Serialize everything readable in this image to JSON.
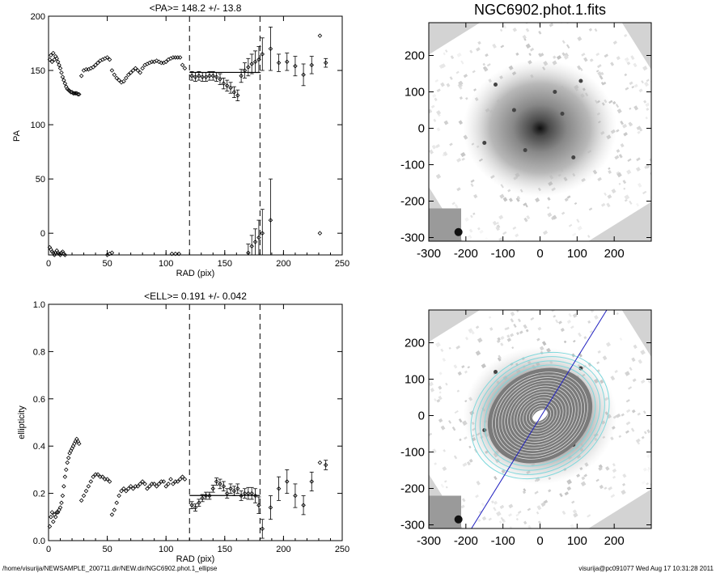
{
  "chart_data": [
    {
      "type": "scatter",
      "id": "pa",
      "title": "<PA>= 148.2 +/-  13.8",
      "xlabel": "RAD (pix)",
      "ylabel": "PA",
      "xlim": [
        0,
        250
      ],
      "ylim": [
        -20,
        200
      ],
      "xticks": [
        0,
        50,
        100,
        150,
        200,
        250
      ],
      "yticks": [
        0,
        50,
        100,
        150,
        200
      ],
      "vlines": [
        120,
        180
      ],
      "mean_line": {
        "x0": 120,
        "x1": 180,
        "y": 148.2
      },
      "inner_x": [
        1,
        2,
        3,
        4,
        5,
        6,
        7,
        8,
        9,
        10,
        11,
        12,
        13,
        14,
        15,
        16,
        17,
        18,
        19,
        20,
        21,
        22,
        23,
        24,
        25,
        26,
        28,
        30,
        32,
        34,
        36,
        38,
        40,
        42,
        44,
        46,
        48,
        50,
        52,
        54,
        56,
        58,
        60,
        62,
        64,
        66,
        68,
        70,
        72,
        74,
        76,
        78,
        80,
        82,
        84,
        86,
        88,
        90,
        92,
        94,
        96,
        98,
        100,
        102,
        104,
        106,
        108,
        110,
        112,
        114,
        116
      ],
      "inner_y": [
        160,
        164,
        158,
        166,
        160,
        163,
        161,
        158,
        155,
        152,
        148,
        144,
        141,
        138,
        135,
        133,
        132,
        131,
        130,
        130,
        129,
        129,
        129,
        129,
        128,
        128,
        145,
        150,
        151,
        151,
        152,
        153,
        155,
        157,
        159,
        160,
        161,
        162,
        160,
        150,
        146,
        143,
        141,
        139,
        140,
        143,
        146,
        148,
        150,
        152,
        150,
        148,
        152,
        155,
        156,
        157,
        158,
        158,
        159,
        158,
        157,
        157,
        158,
        160,
        161,
        162,
        162,
        162,
        162,
        155,
        152
      ],
      "outer_x": [
        122,
        125,
        128,
        131,
        134,
        137,
        140,
        143,
        146,
        149,
        152,
        155,
        158,
        161,
        164,
        167,
        170,
        173,
        176,
        179,
        182,
        189,
        196,
        203,
        210,
        217,
        224,
        231,
        236
      ],
      "outer_y": [
        145,
        144,
        145,
        144,
        144,
        145,
        145,
        144,
        142,
        138,
        136,
        134,
        130,
        127,
        145,
        150,
        153,
        156,
        158,
        160,
        165,
        170,
        157,
        158,
        154,
        146,
        155,
        182,
        157
      ],
      "outer_err": [
        4,
        4,
        4,
        4,
        4,
        4,
        4,
        4,
        5,
        5,
        5,
        5,
        5,
        5,
        6,
        7,
        8,
        9,
        10,
        12,
        15,
        20,
        8,
        8,
        9,
        10,
        8,
        0,
        4
      ],
      "low_x": [
        1,
        2,
        3,
        4,
        5,
        6,
        7,
        8,
        9,
        10,
        11,
        12,
        13,
        14,
        50,
        52,
        54,
        105,
        108,
        111
      ],
      "low_y": [
        -13,
        -15,
        -17,
        -18,
        -20,
        -18,
        -16,
        -18,
        -19,
        -20,
        -18,
        -17,
        -19,
        -20,
        -20,
        -19,
        -18,
        -19,
        -19,
        -19
      ],
      "low_outer_x": [
        170,
        173,
        176,
        179,
        182,
        189,
        231
      ],
      "low_outer_y": [
        -18,
        -12,
        -8,
        -4,
        0,
        12,
        0
      ],
      "low_outer_err": [
        8,
        10,
        12,
        16,
        22,
        38,
        0
      ]
    },
    {
      "type": "scatter",
      "id": "ell",
      "title": "<ELL>= 0.191 +/-  0.042",
      "xlabel": "RAD (pix)",
      "ylabel": "ellipticity",
      "xlim": [
        0,
        250
      ],
      "ylim": [
        0.0,
        1.0
      ],
      "xticks": [
        0,
        50,
        100,
        150,
        200,
        250
      ],
      "yticks": [
        "0.0",
        "0.2",
        "0.4",
        "0.6",
        "0.8",
        "1.0"
      ],
      "vlines": [
        120,
        180
      ],
      "mean_line": {
        "x0": 120,
        "x1": 180,
        "y": 0.191
      },
      "inner_x": [
        1,
        2,
        3,
        4,
        5,
        6,
        7,
        8,
        9,
        10,
        11,
        12,
        13,
        14,
        15,
        16,
        17,
        18,
        19,
        20,
        21,
        22,
        23,
        24,
        25,
        26,
        28,
        30,
        32,
        34,
        36,
        38,
        40,
        42,
        44,
        46,
        48,
        50,
        52,
        54,
        56,
        58,
        60,
        62,
        64,
        66,
        68,
        70,
        72,
        74,
        76,
        78,
        80,
        82,
        84,
        86,
        88,
        90,
        92,
        94,
        96,
        98,
        100,
        102,
        104,
        106,
        108,
        110,
        112,
        114,
        116
      ],
      "inner_y": [
        0.06,
        0.1,
        0.12,
        0.08,
        0.11,
        0.1,
        0.12,
        0.12,
        0.13,
        0.14,
        0.16,
        0.19,
        0.23,
        0.27,
        0.3,
        0.33,
        0.35,
        0.37,
        0.38,
        0.39,
        0.4,
        0.41,
        0.42,
        0.43,
        0.42,
        0.41,
        0.17,
        0.19,
        0.21,
        0.23,
        0.25,
        0.27,
        0.28,
        0.28,
        0.27,
        0.27,
        0.26,
        0.26,
        0.25,
        0.11,
        0.13,
        0.16,
        0.19,
        0.21,
        0.22,
        0.21,
        0.22,
        0.23,
        0.22,
        0.23,
        0.23,
        0.24,
        0.25,
        0.24,
        0.22,
        0.23,
        0.24,
        0.24,
        0.23,
        0.24,
        0.25,
        0.25,
        0.23,
        0.24,
        0.26,
        0.24,
        0.25,
        0.25,
        0.26,
        0.27,
        0.26
      ],
      "outer_x": [
        122,
        125,
        128,
        131,
        134,
        137,
        140,
        143,
        146,
        149,
        152,
        155,
        158,
        161,
        164,
        167,
        170,
        173,
        176,
        179,
        182,
        189,
        196,
        203,
        210,
        217,
        224,
        231,
        236
      ],
      "outer_y": [
        0.15,
        0.14,
        0.16,
        0.18,
        0.19,
        0.19,
        0.22,
        0.25,
        0.24,
        0.23,
        0.2,
        0.22,
        0.21,
        0.22,
        0.19,
        0.2,
        0.2,
        0.2,
        0.19,
        0.15,
        0.05,
        0.14,
        0.22,
        0.25,
        0.19,
        0.15,
        0.25,
        0.33,
        0.32
      ],
      "outer_err": [
        0.015,
        0.015,
        0.015,
        0.015,
        0.015,
        0.015,
        0.015,
        0.015,
        0.02,
        0.02,
        0.02,
        0.02,
        0.02,
        0.02,
        0.02,
        0.02,
        0.025,
        0.025,
        0.03,
        0.035,
        0.04,
        0.05,
        0.05,
        0.05,
        0.05,
        0.04,
        0.04,
        0,
        0.02
      ]
    },
    {
      "type": "image",
      "id": "img_top",
      "title": "NGC6902.phot.1.fits",
      "xlim": [
        -300,
        300
      ],
      "ylim": [
        -310,
        290
      ],
      "xticks": [
        -300,
        -200,
        -100,
        0,
        100,
        200
      ],
      "yticks": [
        -300,
        -200,
        -100,
        0,
        100,
        200
      ]
    },
    {
      "type": "image",
      "id": "img_bot",
      "title": "",
      "xlim": [
        -300,
        300
      ],
      "ylim": [
        -310,
        290
      ],
      "xticks": [
        -300,
        -200,
        -100,
        0,
        100,
        200
      ],
      "yticks": [
        -300,
        -200,
        -100,
        0,
        100,
        200
      ]
    }
  ],
  "footer": {
    "left": "/home/visurija/NEWSAMPLE_200711.dir/NEW.dir/NGC6902.phot.1_ellipse",
    "right": "visurija@pc091077  Wed Aug 17 10:31:28 2011"
  }
}
